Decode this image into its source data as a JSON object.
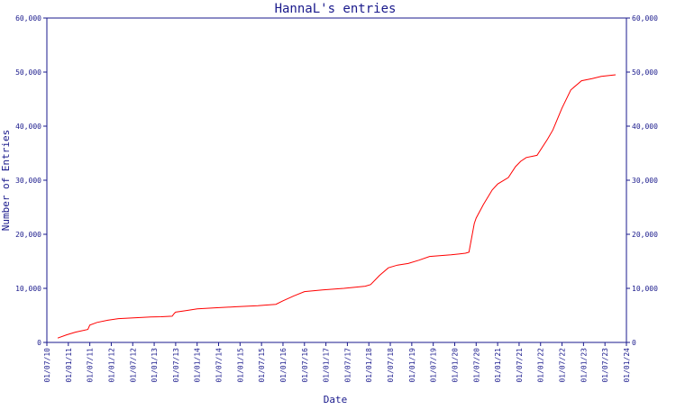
{
  "chart_data": {
    "type": "line",
    "title": "HannaL's entries",
    "xlabel": "Date",
    "ylabel": "Number of Entries",
    "xlim": [
      "2010-07-01",
      "2024-01-01"
    ],
    "ylim": [
      0,
      60000
    ],
    "x_ticks": [
      "01/07/10",
      "01/01/11",
      "01/07/11",
      "01/01/12",
      "01/07/12",
      "01/01/13",
      "01/07/13",
      "01/01/14",
      "01/07/14",
      "01/01/15",
      "01/07/15",
      "01/01/16",
      "01/07/16",
      "01/01/17",
      "01/07/17",
      "01/01/18",
      "01/07/18",
      "01/01/19",
      "01/07/19",
      "01/01/20",
      "01/07/20",
      "01/01/21",
      "01/07/21",
      "01/01/22",
      "01/07/22",
      "01/01/23",
      "01/07/23",
      "01/01/24"
    ],
    "y_ticks": [
      "0",
      "10,000",
      "20,000",
      "30,000",
      "40,000",
      "50,000",
      "60,000"
    ],
    "y_tick_values": [
      0,
      10000,
      20000,
      30000,
      40000,
      50000,
      60000
    ],
    "grid": false,
    "colors": {
      "line": "#ff0000",
      "axes": "#1a1a8c"
    },
    "series": [
      {
        "x": [
          "2010-10-01",
          "2010-12-15",
          "2011-03-01",
          "2011-06-15",
          "2011-07-01",
          "2011-09-01",
          "2011-12-01",
          "2012-03-01",
          "2012-06-01",
          "2012-09-01",
          "2012-12-01",
          "2013-03-01",
          "2013-06-01",
          "2013-06-20",
          "2013-07-01",
          "2013-10-01",
          "2014-01-01",
          "2014-06-01",
          "2014-12-01",
          "2015-06-01",
          "2015-08-01",
          "2015-11-01",
          "2016-01-01",
          "2016-04-01",
          "2016-07-01",
          "2016-12-01",
          "2017-06-01",
          "2017-12-01",
          "2018-01-15",
          "2018-04-01",
          "2018-06-15",
          "2018-09-01",
          "2018-12-01",
          "2019-03-01",
          "2019-06-01",
          "2019-12-01",
          "2020-04-01",
          "2020-05-01",
          "2020-06-15",
          "2020-07-01",
          "2020-09-01",
          "2020-11-15",
          "2021-01-01",
          "2021-04-01",
          "2021-06-01",
          "2021-07-15",
          "2021-09-01",
          "2021-12-01",
          "2022-03-01",
          "2022-04-15",
          "2022-07-01",
          "2022-09-15",
          "2022-12-15",
          "2023-03-15",
          "2023-06-01",
          "2023-10-01"
        ],
        "y": [
          800,
          1400,
          1900,
          2400,
          3200,
          3700,
          4100,
          4400,
          4500,
          4600,
          4700,
          4750,
          4850,
          5400,
          5600,
          5900,
          6200,
          6400,
          6600,
          6800,
          6900,
          7050,
          7700,
          8600,
          9400,
          9700,
          10000,
          10400,
          10700,
          12400,
          13800,
          14300,
          14600,
          15200,
          15900,
          16200,
          16500,
          16700,
          22000,
          23000,
          25500,
          28200,
          29300,
          30500,
          32500,
          33500,
          34200,
          34600,
          37600,
          39300,
          43300,
          46700,
          48400,
          48800,
          49200,
          49500
        ]
      }
    ]
  }
}
